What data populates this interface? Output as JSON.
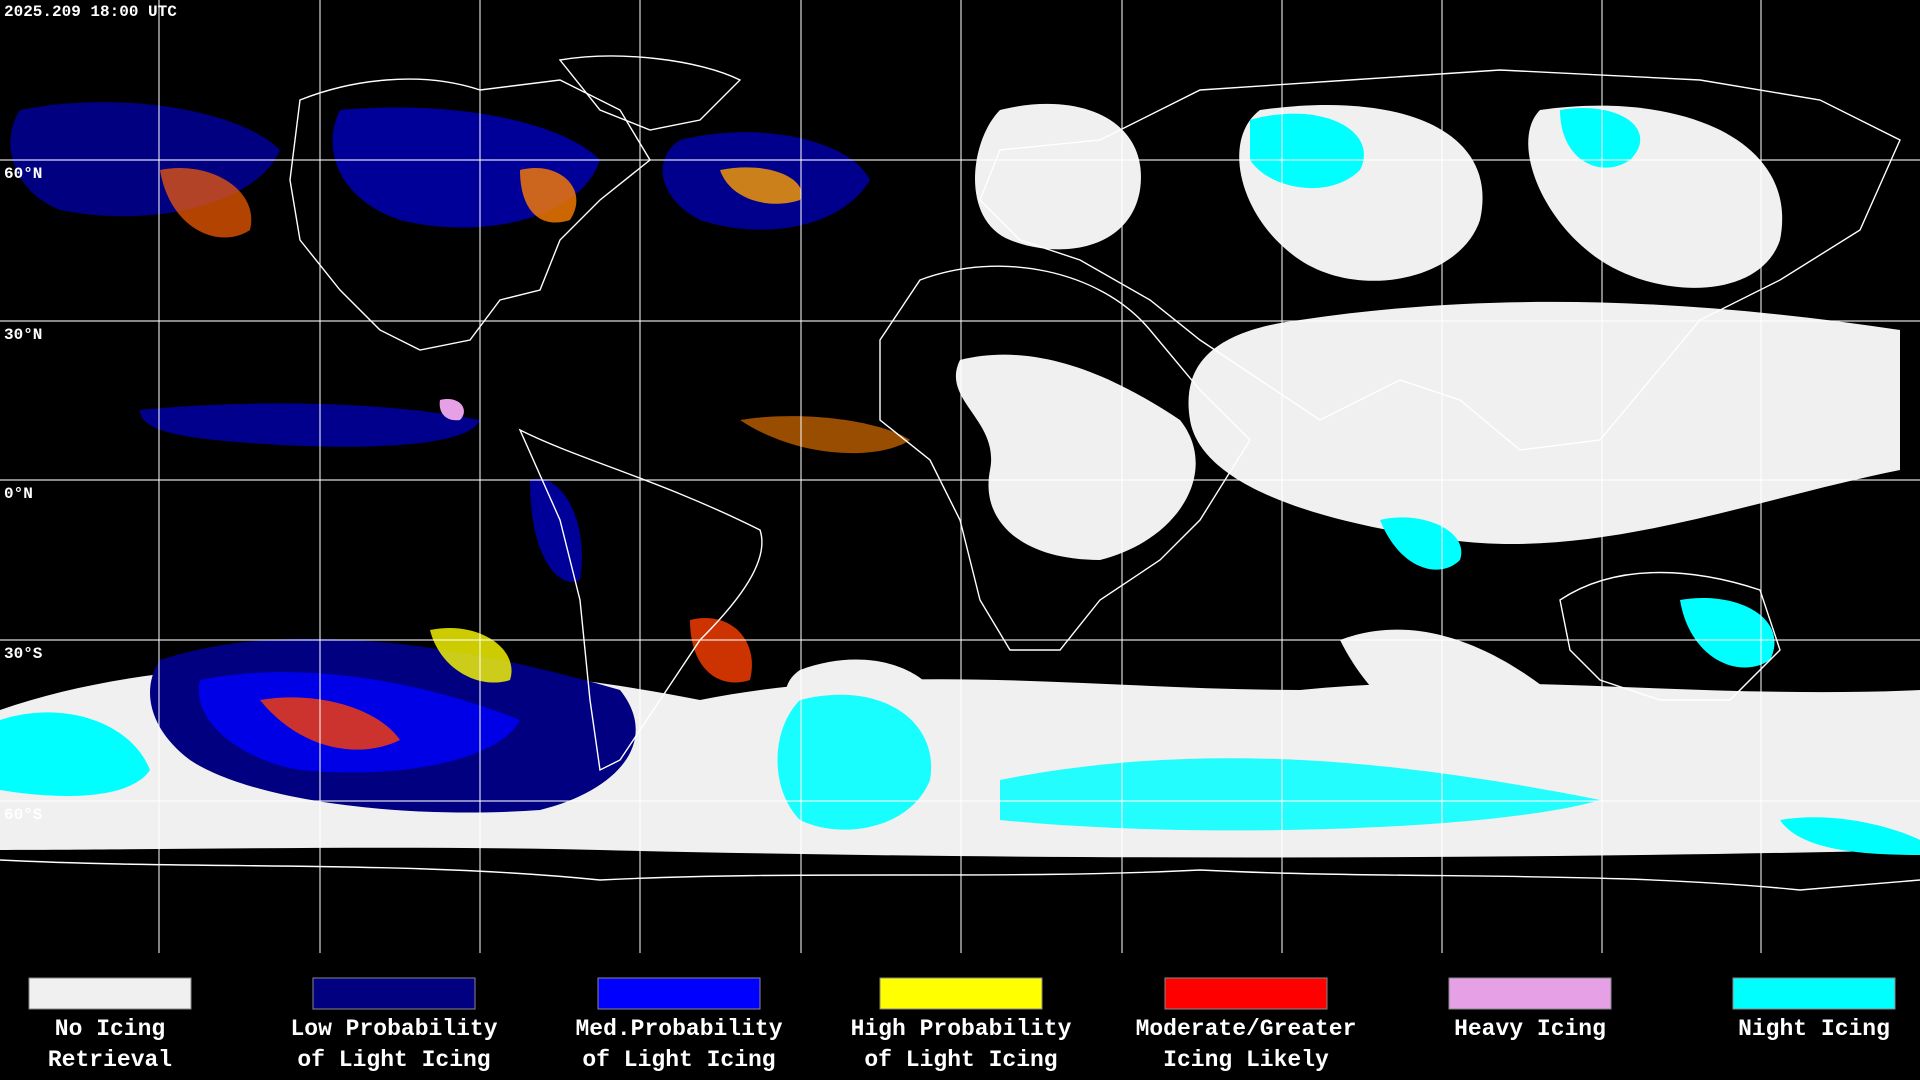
{
  "timestamp": "2025.209 18:00 UTC",
  "latitude_labels": [
    "60°N",
    "30°N",
    "0°N",
    "30°S",
    "60°S"
  ],
  "legend": [
    {
      "lines": [
        "No Icing",
        "Retrieval"
      ],
      "color": "#f0f0f0"
    },
    {
      "lines": [
        "Low Probability",
        "of Light Icing"
      ],
      "color": "#000080"
    },
    {
      "lines": [
        "Med.Probability",
        "of Light Icing"
      ],
      "color": "#0000ff"
    },
    {
      "lines": [
        "High Probability",
        "of Light Icing"
      ],
      "color": "#ffff00"
    },
    {
      "lines": [
        "Moderate/Greater",
        "Icing Likely"
      ],
      "color": "#ff0000"
    },
    {
      "lines": [
        "Heavy Icing"
      ],
      "color": "#e6a0e6"
    },
    {
      "lines": [
        "Night Icing"
      ],
      "color": "#00ffff"
    }
  ]
}
